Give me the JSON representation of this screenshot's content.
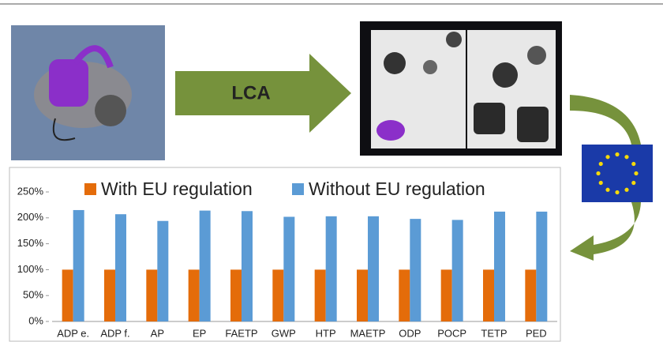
{
  "arrow_label": "LCA",
  "chart_data": {
    "type": "bar",
    "categories": [
      "ADP e.",
      "ADP f.",
      "AP",
      "EP",
      "FAETP",
      "GWP",
      "HTP",
      "MAETP",
      "ODP",
      "POCP",
      "TETP",
      "PED"
    ],
    "series": [
      {
        "name": "With EU regulation",
        "color": "#e46c0a",
        "values": [
          100,
          100,
          100,
          100,
          100,
          100,
          100,
          100,
          100,
          100,
          100,
          100
        ]
      },
      {
        "name": "Without EU regulation",
        "color": "#5b9bd5",
        "values": [
          215,
          207,
          194,
          214,
          213,
          202,
          203,
          203,
          198,
          196,
          212,
          212
        ]
      }
    ],
    "ylim": [
      0,
      250
    ],
    "yticks": [
      {
        "value": 0,
        "label": "0%"
      },
      {
        "value": 50,
        "label": "50%"
      },
      {
        "value": 100,
        "label": "100%"
      },
      {
        "value": 150,
        "label": "150%"
      },
      {
        "value": 200,
        "label": "200%"
      },
      {
        "value": 250,
        "label": "250%"
      }
    ],
    "legend": "top"
  }
}
